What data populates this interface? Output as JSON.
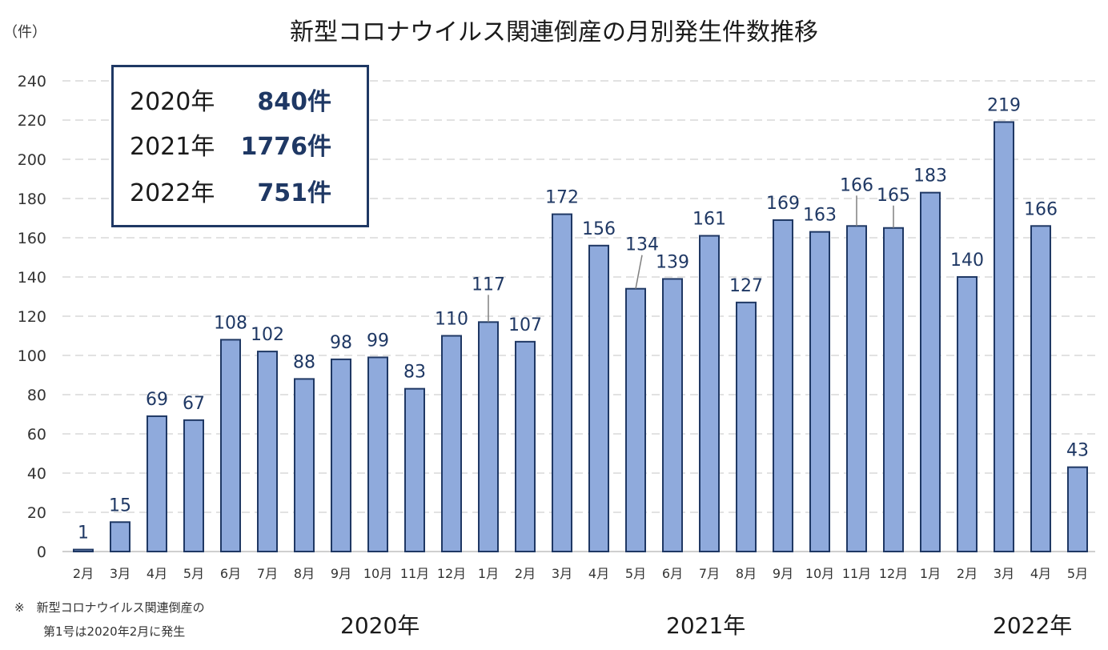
{
  "chart_data": {
    "type": "bar",
    "title": "新型コロナウイルス関連倒産の月別発生件数推移",
    "ylabel": "（件）",
    "ylim": [
      0,
      240
    ],
    "yticks": [
      "0",
      "20",
      "40",
      "60",
      "80",
      "100",
      "120",
      "140",
      "160",
      "180",
      "200",
      "220",
      "240"
    ],
    "grid": "horizontal dashed",
    "categories": [
      "2月",
      "3月",
      "4月",
      "5月",
      "6月",
      "7月",
      "8月",
      "9月",
      "10月",
      "11月",
      "12月",
      "1月",
      "2月",
      "3月",
      "4月",
      "5月",
      "6月",
      "7月",
      "8月",
      "9月",
      "10月",
      "11月",
      "12月",
      "1月",
      "2月",
      "3月",
      "4月",
      "5月"
    ],
    "values": [
      1,
      15,
      69,
      67,
      108,
      102,
      88,
      98,
      99,
      83,
      110,
      117,
      107,
      172,
      156,
      134,
      139,
      161,
      127,
      169,
      163,
      166,
      165,
      183,
      140,
      219,
      166,
      43
    ],
    "year_labels": [
      "2020年",
      "2021年",
      "2022年"
    ],
    "bar_color": "#8faadc",
    "bar_edge_color": "#1f3864"
  },
  "summary": {
    "rows": [
      {
        "year": "2020年",
        "count": "840件"
      },
      {
        "year": "2021年",
        "count": "1776件"
      },
      {
        "year": "2022年",
        "count": "751件"
      }
    ]
  },
  "footnote": {
    "line1": "※　新型コロナウイルス関連倒産の",
    "line2": "第1号は2020年2月に発生"
  }
}
